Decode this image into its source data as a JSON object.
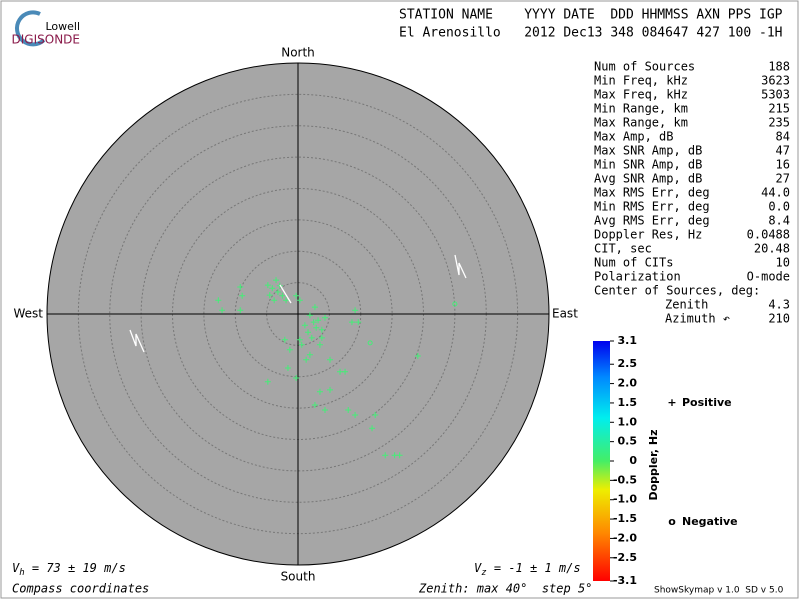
{
  "header": {
    "logo_top": "Lowell",
    "logo_bottom": "DIGISONDE",
    "line1": "STATION NAME    YYYY DATE  DDD HHMMSS AXN PPS IGP",
    "line2": "El Arenosillo   2012 Dec13 348 084647 427 100 -1H"
  },
  "stats": [
    [
      "Num of Sources",
      "188"
    ],
    [
      "Min Freq, kHz",
      "3623"
    ],
    [
      "Max Freq, kHz",
      "5303"
    ],
    [
      "Min Range, km",
      "215"
    ],
    [
      "Max Range, km",
      "235"
    ],
    [
      "Max Amp, dB",
      "84"
    ],
    [
      "Max SNR Amp, dB",
      "47"
    ],
    [
      "Min SNR Amp, dB",
      "16"
    ],
    [
      "Avg SNR Amp, dB",
      "27"
    ],
    [
      "Max RMS Err, deg",
      "44.0"
    ],
    [
      "Min RMS Err, deg",
      "0.0"
    ],
    [
      "Avg RMS Err, deg",
      "8.4"
    ],
    [
      "Doppler Res, Hz",
      "0.0488"
    ],
    [
      "CIT, sec",
      "20.48"
    ],
    [
      "Num of CITs",
      "10"
    ],
    [
      "Polarization",
      "O-mode"
    ]
  ],
  "center": {
    "title": "Center of Sources, deg:",
    "rows": [
      [
        "Zenith",
        "4.3"
      ],
      [
        "Azimuth ↶",
        "210"
      ]
    ]
  },
  "chart_data": {
    "type": "skymap",
    "directions": {
      "north": "North",
      "south": "South",
      "east": "East",
      "west": "West"
    },
    "rlim": [
      0,
      40
    ],
    "rticks": [
      5,
      10,
      15,
      20,
      25,
      30,
      35,
      40
    ],
    "series": [
      {
        "name": "Positive",
        "marker": "+",
        "color": "#44ee77",
        "legend_color": "#0000cc",
        "x": [
          -4.8,
          -4.1,
          -3.5,
          -3.2,
          -4.5,
          -2.5,
          -1.9,
          -3.8,
          -2.9,
          -12.7,
          -12.1,
          -9.2,
          -8.9,
          -9.2,
          0.3,
          -0.3,
          2.7,
          1.9,
          3.2,
          1.1,
          3.8,
          2.2,
          0.3,
          3.5,
          -1.3,
          1.9,
          5.1,
          1.3,
          -1.6,
          -0.3,
          6.7,
          7.5,
          -4.8,
          3.5,
          5.1,
          2.7,
          4.3,
          8.0,
          9.1,
          12.3,
          11.8,
          13.9,
          15.4,
          16.2,
          19.1,
          9.1,
          9.6,
          8.6,
          4.3,
          0.6,
          -2.1,
          2.9,
          1.6,
          3.8,
          2.5
        ],
        "y": [
          4.6,
          4.1,
          5.4,
          3.5,
          3.0,
          2.9,
          2.2,
          2.2,
          4.5,
          2.2,
          0.6,
          4.3,
          2.9,
          0.6,
          2.2,
          2.9,
          1.1,
          -0.2,
          -1.0,
          -1.8,
          -2.5,
          -3.8,
          -4.1,
          -4.9,
          -5.7,
          -6.5,
          -7.3,
          -7.3,
          -8.6,
          -10.2,
          -9.2,
          -9.2,
          -10.8,
          -12.4,
          -12.1,
          -14.5,
          -15.3,
          -15.3,
          -16.1,
          -16.1,
          -18.2,
          -22.5,
          -22.5,
          -22.5,
          -6.7,
          0.6,
          -1.3,
          -1.3,
          -0.6,
          -4.9,
          -4.1,
          -2.2,
          -2.9,
          -3.8,
          -1.3
        ]
      },
      {
        "name": "Negative",
        "marker": "o",
        "color": "#44ee77",
        "legend_color": "#cc0000",
        "x": [
          25.0,
          11.5
        ],
        "y": [
          1.6,
          -4.6
        ]
      }
    ],
    "colorbar": {
      "label": "Doppler, Hz",
      "lim": [
        -3.1,
        3.1
      ],
      "ticks": [
        3.1,
        2.5,
        {
          "value": 2,
          "label": "2.0"
        },
        1.5,
        {
          "value": 1,
          "label": "1.0"
        },
        0.5,
        0,
        -0.5,
        {
          "value": -1,
          "label": "-1.0"
        },
        -1.5,
        {
          "value": -2,
          "label": "-2.0"
        },
        -2.5,
        -3.1
      ]
    }
  },
  "footer": {
    "vh_symbol": "V",
    "vh_sub": "h",
    "vh_text": " = 73 ± 19 m/s",
    "vz_symbol": "V",
    "vz_sub": "z",
    "vz_text": " = -1 ± 1 m/s",
    "coords": "Compass coordinates",
    "zenith": "Zenith: max 40°  step 5°",
    "version": "ShowSkymap v 1.0  SD v 5.0"
  }
}
